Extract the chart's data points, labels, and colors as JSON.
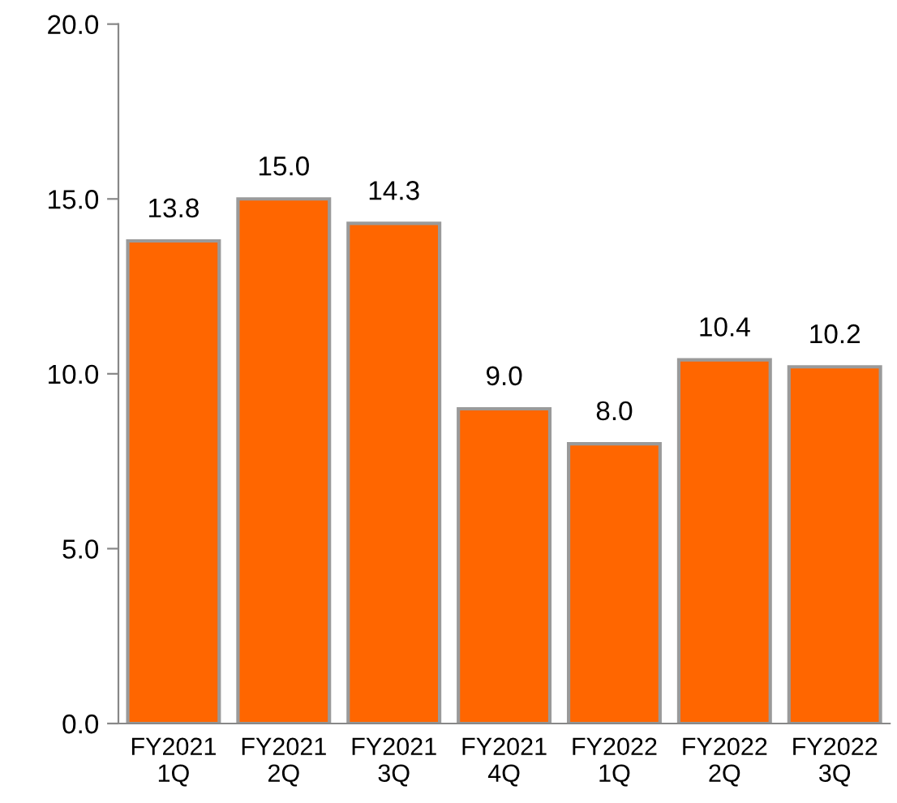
{
  "chart_data": {
    "type": "bar",
    "categories": [
      "FY2021\n1Q",
      "FY2021\n2Q",
      "FY2021\n3Q",
      "FY2021\n4Q",
      "FY2022\n1Q",
      "FY2022\n2Q",
      "FY2022\n3Q"
    ],
    "values": [
      13.8,
      15.0,
      14.3,
      9.0,
      8.0,
      10.4,
      10.2
    ],
    "color": "#ff6600",
    "ylim": [
      0,
      20
    ],
    "yticks": [
      {
        "value": 0,
        "label": "0.0"
      },
      {
        "value": 5,
        "label": "5.0"
      },
      {
        "value": 10,
        "label": "10.0"
      },
      {
        "value": 15,
        "label": "15.0"
      },
      {
        "value": 20,
        "label": "20.0"
      }
    ],
    "value_labels": [
      "13.8",
      "15.0",
      "14.3",
      "9.0",
      "8.0",
      "10.4",
      "10.2"
    ],
    "grid": false,
    "legend": false
  }
}
